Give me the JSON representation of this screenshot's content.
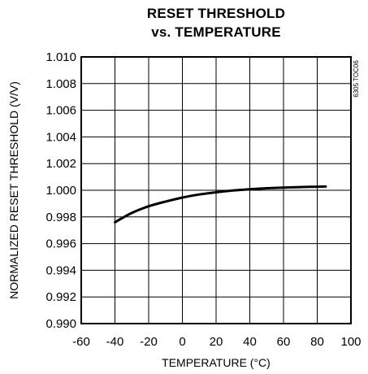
{
  "chart_data": {
    "type": "line",
    "title_line1": "RESET THRESHOLD",
    "title_line2": "vs. TEMPERATURE",
    "xlabel": "TEMPERATURE (°C)",
    "ylabel": "NORMALIZED RESET THRESHOLD (V/V)",
    "xlim": [
      -60,
      100
    ],
    "ylim": [
      0.99,
      1.01
    ],
    "x_ticks": [
      "-60",
      "-40",
      "-20",
      "0",
      "20",
      "40",
      "60",
      "80",
      "100"
    ],
    "y_ticks": [
      "0.990",
      "0.992",
      "0.994",
      "0.996",
      "0.998",
      "1.000",
      "1.002",
      "1.004",
      "1.006",
      "1.008",
      "1.010"
    ],
    "grid": true,
    "series": [
      {
        "color": "#000000",
        "x": [
          -40,
          -30,
          -20,
          -10,
          0,
          10,
          20,
          30,
          40,
          50,
          60,
          70,
          85
        ],
        "y": [
          0.9976,
          0.9983,
          0.9988,
          0.99915,
          0.99945,
          0.99968,
          0.99985,
          0.99998,
          1.00008,
          1.00015,
          1.0002,
          1.00024,
          1.00028
        ]
      }
    ],
    "figure_code": "6305 TOC06"
  }
}
